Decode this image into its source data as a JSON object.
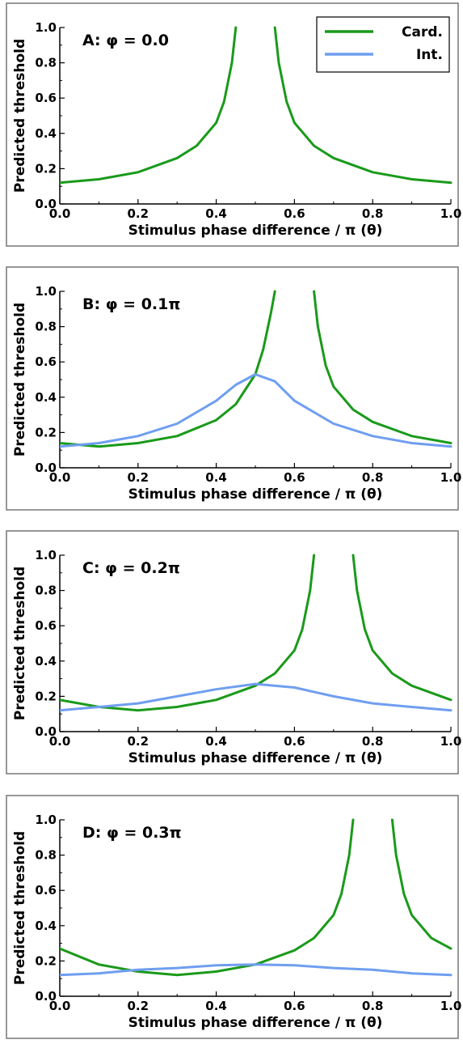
{
  "colors": {
    "card": "#1a9a1a",
    "int": "#6f9ef0",
    "frame": "#777777",
    "axis": "#000000"
  },
  "legend": {
    "placement": "top-right",
    "entries": [
      {
        "name": "Card.",
        "color": "#1a9a1a"
      },
      {
        "name": "Int.",
        "color": "#6f9ef0"
      }
    ]
  },
  "chart_data": [
    {
      "type": "line",
      "title": "A: φ = 0.0",
      "xlabel": "Stimulus phase difference / π (θ)",
      "ylabel": "Predicted threshold",
      "xlim": [
        0,
        1
      ],
      "ylim": [
        0,
        1
      ],
      "xticks": [
        "0.0",
        "0.2",
        "0.4",
        "0.6",
        "0.8",
        "1.0"
      ],
      "yticks": [
        "0.0",
        "0.2",
        "0.4",
        "0.6",
        "0.8",
        "1.0"
      ],
      "has_legend": true,
      "series": [
        {
          "name": "Card.",
          "color": "#1a9a1a",
          "x": [
            0.0,
            0.1,
            0.2,
            0.3,
            0.35,
            0.4,
            0.42,
            0.44,
            0.45
          ],
          "y": [
            0.12,
            0.14,
            0.18,
            0.26,
            0.33,
            0.46,
            0.58,
            0.8,
            1.0
          ]
        },
        {
          "name": "Card.",
          "color": "#1a9a1a",
          "x": [
            0.55,
            0.56,
            0.58,
            0.6,
            0.65,
            0.7,
            0.8,
            0.9,
            1.0
          ],
          "y": [
            1.0,
            0.8,
            0.58,
            0.46,
            0.33,
            0.26,
            0.18,
            0.14,
            0.12
          ]
        }
      ]
    },
    {
      "type": "line",
      "title": "B: φ = 0.1π",
      "xlabel": "Stimulus phase difference / π (θ)",
      "ylabel": "Predicted threshold",
      "xlim": [
        0,
        1
      ],
      "ylim": [
        0,
        1
      ],
      "xticks": [
        "0.0",
        "0.2",
        "0.4",
        "0.6",
        "0.8",
        "1.0"
      ],
      "yticks": [
        "0.0",
        "0.2",
        "0.4",
        "0.6",
        "0.8",
        "1.0"
      ],
      "has_legend": false,
      "series": [
        {
          "name": "Card.",
          "color": "#1a9a1a",
          "x": [
            0.0,
            0.1,
            0.2,
            0.3,
            0.4,
            0.45,
            0.5,
            0.52,
            0.54,
            0.55
          ],
          "y": [
            0.14,
            0.12,
            0.14,
            0.18,
            0.27,
            0.36,
            0.53,
            0.67,
            0.88,
            1.0
          ]
        },
        {
          "name": "Card.",
          "color": "#1a9a1a",
          "x": [
            0.65,
            0.66,
            0.68,
            0.7,
            0.75,
            0.8,
            0.9,
            1.0
          ],
          "y": [
            1.0,
            0.8,
            0.58,
            0.46,
            0.33,
            0.26,
            0.18,
            0.14
          ]
        },
        {
          "name": "Int.",
          "color": "#6f9ef0",
          "x": [
            0.0,
            0.1,
            0.2,
            0.3,
            0.4,
            0.45,
            0.5,
            0.55,
            0.6,
            0.7,
            0.8,
            0.9,
            1.0
          ],
          "y": [
            0.12,
            0.14,
            0.18,
            0.25,
            0.38,
            0.47,
            0.53,
            0.49,
            0.38,
            0.25,
            0.18,
            0.14,
            0.12
          ]
        }
      ]
    },
    {
      "type": "line",
      "title": "C: φ = 0.2π",
      "xlabel": "Stimulus phase difference / π (θ)",
      "ylabel": "Predicted threshold",
      "xlim": [
        0,
        1
      ],
      "ylim": [
        0,
        1
      ],
      "xticks": [
        "0.0",
        "0.2",
        "0.4",
        "0.6",
        "0.8",
        "1.0"
      ],
      "yticks": [
        "0.0",
        "0.2",
        "0.4",
        "0.6",
        "0.8",
        "1.0"
      ],
      "has_legend": false,
      "series": [
        {
          "name": "Card.",
          "color": "#1a9a1a",
          "x": [
            0.0,
            0.1,
            0.2,
            0.3,
            0.4,
            0.5,
            0.55,
            0.6,
            0.62,
            0.64,
            0.65
          ],
          "y": [
            0.18,
            0.14,
            0.12,
            0.14,
            0.18,
            0.26,
            0.33,
            0.46,
            0.58,
            0.8,
            1.0
          ]
        },
        {
          "name": "Card.",
          "color": "#1a9a1a",
          "x": [
            0.75,
            0.76,
            0.78,
            0.8,
            0.85,
            0.9,
            1.0
          ],
          "y": [
            1.0,
            0.8,
            0.58,
            0.46,
            0.33,
            0.26,
            0.18
          ]
        },
        {
          "name": "Int.",
          "color": "#6f9ef0",
          "x": [
            0.0,
            0.1,
            0.2,
            0.3,
            0.4,
            0.5,
            0.6,
            0.7,
            0.8,
            0.9,
            1.0
          ],
          "y": [
            0.12,
            0.14,
            0.16,
            0.2,
            0.24,
            0.27,
            0.25,
            0.2,
            0.16,
            0.14,
            0.12
          ]
        }
      ]
    },
    {
      "type": "line",
      "title": "D: φ = 0.3π",
      "xlabel": "Stimulus phase difference / π (θ)",
      "ylabel": "Predicted threshold",
      "xlim": [
        0,
        1
      ],
      "ylim": [
        0,
        1
      ],
      "xticks": [
        "0.0",
        "0.2",
        "0.4",
        "0.6",
        "0.8",
        "1.0"
      ],
      "yticks": [
        "0.0",
        "0.2",
        "0.4",
        "0.6",
        "0.8",
        "1.0"
      ],
      "has_legend": false,
      "series": [
        {
          "name": "Card.",
          "color": "#1a9a1a",
          "x": [
            0.0,
            0.1,
            0.2,
            0.3,
            0.4,
            0.5,
            0.6,
            0.65,
            0.7,
            0.72,
            0.74,
            0.75
          ],
          "y": [
            0.27,
            0.18,
            0.14,
            0.12,
            0.14,
            0.18,
            0.26,
            0.33,
            0.46,
            0.58,
            0.8,
            1.0
          ]
        },
        {
          "name": "Card.",
          "color": "#1a9a1a",
          "x": [
            0.85,
            0.86,
            0.88,
            0.9,
            0.95,
            1.0
          ],
          "y": [
            1.0,
            0.8,
            0.58,
            0.46,
            0.33,
            0.27
          ]
        },
        {
          "name": "Int.",
          "color": "#6f9ef0",
          "x": [
            0.0,
            0.1,
            0.2,
            0.3,
            0.4,
            0.5,
            0.6,
            0.7,
            0.8,
            0.9,
            1.0
          ],
          "y": [
            0.12,
            0.13,
            0.15,
            0.16,
            0.175,
            0.18,
            0.175,
            0.16,
            0.15,
            0.13,
            0.12
          ]
        }
      ]
    }
  ]
}
